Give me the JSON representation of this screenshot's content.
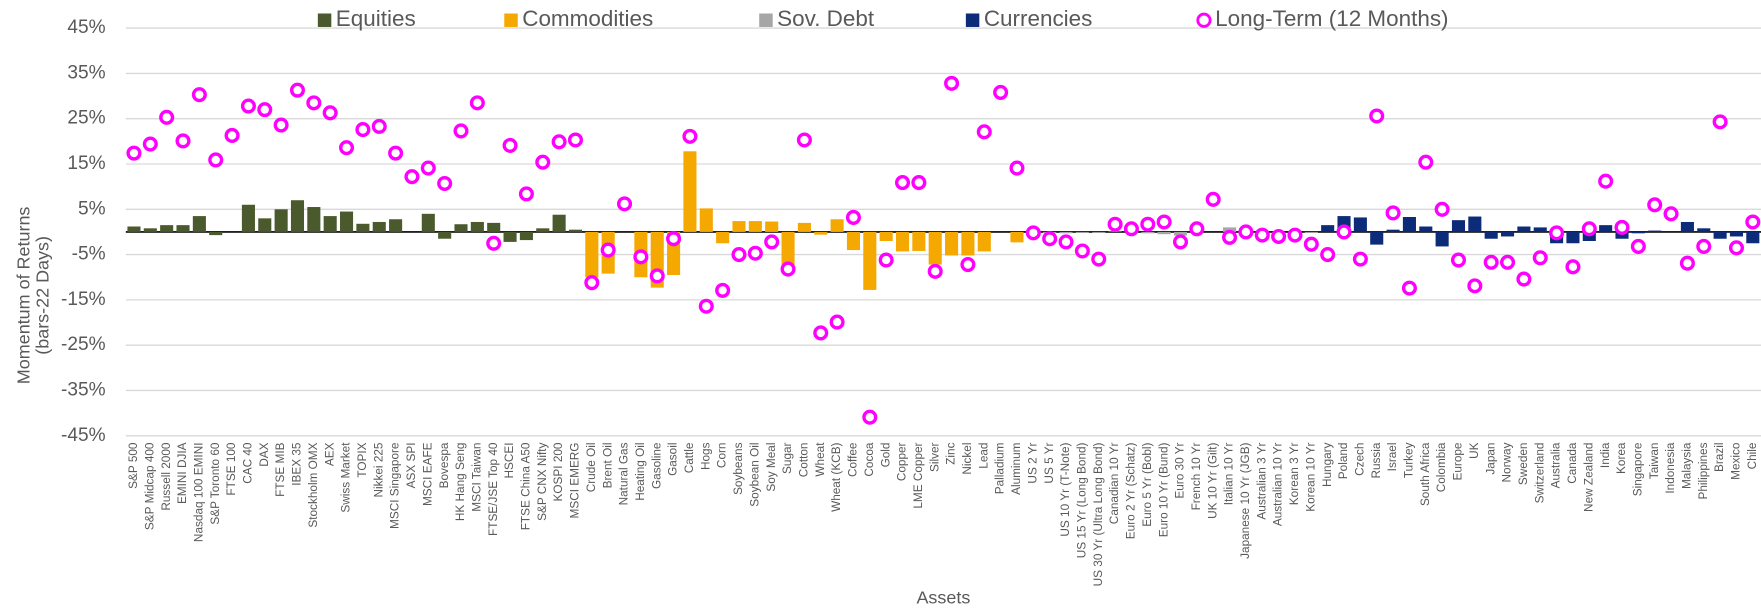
{
  "chart_data": {
    "type": "bar",
    "xlabel": "Assets",
    "ylabel": [
      "Momentum of Returns",
      "(bars-22 Days)"
    ],
    "ylim": [
      -45,
      45
    ],
    "yticks": [
      {
        "value": -45,
        "label": "-45%"
      },
      {
        "value": -35,
        "label": "-35%"
      },
      {
        "value": -25,
        "label": "-25%"
      },
      {
        "value": -15,
        "label": "-15%"
      },
      {
        "value": -5,
        "label": "-5%"
      },
      {
        "value": 5,
        "label": "5%"
      },
      {
        "value": 15,
        "label": "15%"
      },
      {
        "value": 25,
        "label": "25%"
      },
      {
        "value": 35,
        "label": "35%"
      },
      {
        "value": 45,
        "label": "45%"
      }
    ],
    "grid": true,
    "legend": "top",
    "categories": [
      "S&P 500",
      "S&P Midcap 400",
      "Russell 2000",
      "EMINI DJIA",
      "Nasdaq 100 EMINI",
      "S&P Toronto 60",
      "FTSE 100",
      "CAC 40",
      "DAX",
      "FTSE MIB",
      "IBEX 35",
      "Stockholm OMX",
      "AEX",
      "Swiss Market",
      "TOPIX",
      "Nikkei 225",
      "MSCI Singapore",
      "ASX SPI",
      "MSCI EAFE",
      "Bovespa",
      "HK Hang Seng",
      "MSCI Taiwan",
      "FTSE/JSE Top 40",
      "HSCEI",
      "FTSE China A50",
      "S&P CNX Nifty",
      "KOSPI 200",
      "MSCI EMERG",
      "Crude Oil",
      "Brent Oil",
      "Natural Gas",
      "Heating Oil",
      "Gasoline",
      "Gasoil",
      "Cattle",
      "Hogs",
      "Corn",
      "Soybeans",
      "Soybean Oil",
      "Soy Meal",
      "Sugar",
      "Cotton",
      "Wheat",
      "Wheat (KCB)",
      "Coffee",
      "Cocoa",
      "Gold",
      "Copper",
      "LME Copper",
      "Silver",
      "Zinc",
      "Nickel",
      "Lead",
      "Palladium",
      "Aluminum",
      "US 2 Yr",
      "US 5 Yr",
      "US 10 Yr (T-Note)",
      "US 15 Yr (Long Bond)",
      "US 30 Yr (Ultra Long Bond)",
      "Canadian 10 Yr",
      "Euro 2 Yr (Schatz)",
      "Euro 5 Yr (Bobl)",
      "Euro 10 Yr (Bund)",
      "Euro 30 Yr",
      "French 10 Yr",
      "UK 10 Yr (Gilt)",
      "Italian 10 Yr",
      "Japanese 10 Yr (JGB)",
      "Australian 3 Yr",
      "Australian 10 Yr",
      "Korean 3 Yr",
      "Korean 10 Yr",
      "Hungary",
      "Poland",
      "Czech",
      "Russia",
      "Israel",
      "Turkey",
      "South Africa",
      "Colombia",
      "Europe",
      "UK",
      "Japan",
      "Norway",
      "Sweden",
      "Switzerland",
      "Australia",
      "Canada",
      "New Zealand",
      "India",
      "Korea",
      "Singapore",
      "Taiwan",
      "Indonesia",
      "Malaysia",
      "Philippines",
      "Brazil",
      "Mexico",
      "Chile"
    ],
    "series": [
      {
        "name": "Equities",
        "type": "bar",
        "color": "#4b5a2c",
        "values": [
          1.2,
          0.8,
          1.5,
          1.5,
          3.5,
          -0.7,
          0,
          6,
          3,
          5,
          7,
          5.5,
          3.5,
          4.5,
          1.8,
          2.2,
          2.8,
          0,
          4,
          -1.5,
          1.7,
          2.2,
          2,
          -2.2,
          -1.8,
          0.8,
          3.8,
          0.5,
          null,
          null,
          null,
          null,
          null,
          null,
          null,
          null,
          null,
          null,
          null,
          null,
          null,
          null,
          null,
          null,
          null,
          null,
          null,
          null,
          null,
          null,
          null,
          null,
          null,
          null,
          null,
          null,
          null,
          null,
          null,
          null,
          null,
          null,
          null,
          null,
          null,
          null,
          null,
          null,
          null,
          null,
          null,
          null,
          null,
          null,
          null,
          null,
          null,
          null,
          null,
          null,
          null,
          null,
          null,
          null,
          null,
          null,
          null,
          null,
          null,
          null,
          null,
          null,
          null,
          null,
          null,
          null,
          null,
          null,
          null,
          null
        ]
      },
      {
        "name": "Commodities",
        "type": "bar",
        "color": "#f5a800",
        "values": [
          null,
          null,
          null,
          null,
          null,
          null,
          null,
          null,
          null,
          null,
          null,
          null,
          null,
          null,
          null,
          null,
          null,
          null,
          null,
          null,
          null,
          null,
          null,
          null,
          null,
          null,
          null,
          null,
          -10,
          -9.2,
          0,
          -10,
          -12.3,
          -9.5,
          17.8,
          5.2,
          -2.5,
          2.4,
          2.4,
          2.3,
          -7.3,
          2,
          -0.6,
          2.8,
          -4,
          -12.8,
          -2,
          -4.3,
          -4.2,
          -7.2,
          -5.2,
          -5.2,
          -4.3,
          0,
          -2.3,
          null,
          null,
          null,
          null,
          null,
          null,
          null,
          null,
          null,
          null,
          null,
          null,
          null,
          null,
          null,
          null,
          null,
          null,
          null,
          null,
          null,
          null,
          null,
          null,
          null,
          null,
          null,
          null,
          null,
          null,
          null,
          null,
          null,
          null,
          null,
          null,
          null,
          null,
          null,
          null,
          null,
          null,
          null,
          null,
          null
        ]
      },
      {
        "name": "Sov. Debt",
        "type": "bar",
        "color": "#a6a6a6",
        "values": [
          null,
          null,
          null,
          null,
          null,
          null,
          null,
          null,
          null,
          null,
          null,
          null,
          null,
          null,
          null,
          null,
          null,
          null,
          null,
          null,
          null,
          null,
          null,
          null,
          null,
          null,
          null,
          null,
          null,
          null,
          null,
          null,
          null,
          null,
          null,
          null,
          null,
          null,
          null,
          null,
          null,
          null,
          null,
          null,
          null,
          null,
          null,
          null,
          null,
          null,
          null,
          null,
          null,
          null,
          null,
          -0.2,
          -0.3,
          -0.3,
          -0.2,
          -0.2,
          0.1,
          0,
          -0.3,
          -0.5,
          -0.8,
          -0.2,
          0,
          1,
          0,
          -0.1,
          -0.2,
          -0.1,
          -0.2,
          null,
          null,
          null,
          null,
          null,
          null,
          null,
          null,
          null,
          null,
          null,
          null,
          null,
          null,
          null,
          null,
          null,
          null,
          null,
          null,
          null,
          null,
          null,
          null,
          null,
          null,
          null
        ]
      },
      {
        "name": "Currencies",
        "type": "bar",
        "color": "#0c2c7a",
        "values": [
          null,
          null,
          null,
          null,
          null,
          null,
          null,
          null,
          null,
          null,
          null,
          null,
          null,
          null,
          null,
          null,
          null,
          null,
          null,
          null,
          null,
          null,
          null,
          null,
          null,
          null,
          null,
          null,
          null,
          null,
          null,
          null,
          null,
          null,
          null,
          null,
          null,
          null,
          null,
          null,
          null,
          null,
          null,
          null,
          null,
          null,
          null,
          null,
          null,
          null,
          null,
          null,
          null,
          null,
          null,
          null,
          null,
          null,
          null,
          null,
          null,
          null,
          null,
          null,
          null,
          null,
          null,
          null,
          null,
          null,
          null,
          null,
          null,
          1.5,
          3.5,
          3.2,
          -2.8,
          0.5,
          3.3,
          1.2,
          -3.2,
          2.6,
          3.4,
          -1.5,
          -1,
          1.2,
          1,
          -2.5,
          -2.5,
          -2,
          1.5,
          -1.5,
          -0.3,
          0.3,
          0,
          2.2,
          0.8,
          -1.5,
          -1,
          -2.5
        ]
      },
      {
        "name": "Long-Term (12 Months)",
        "type": "scatter",
        "color": "#ff00ff",
        "values": [
          17.4,
          19.4,
          25.3,
          20.1,
          30.3,
          15.9,
          21.3,
          27.8,
          27,
          23.6,
          31.3,
          28.5,
          26.3,
          18.6,
          22.6,
          23.3,
          17.4,
          12.2,
          14.1,
          10.7,
          22.3,
          28.5,
          -2.5,
          19.1,
          8.4,
          15.4,
          19.9,
          20.3,
          -11.2,
          -4,
          6.2,
          -5.5,
          -9.7,
          -1.5,
          21.1,
          -16.4,
          -12.9,
          -5,
          -4.7,
          -2.2,
          -8.2,
          20.3,
          -22.3,
          -19.9,
          3.2,
          -40.9,
          -6.2,
          10.9,
          10.9,
          -8.7,
          32.8,
          -7.2,
          22.1,
          30.8,
          14.1,
          -0.2,
          -1.5,
          -2.2,
          -4.2,
          -6,
          1.7,
          0.7,
          1.7,
          2.2,
          -2.2,
          0.7,
          7.2,
          -1.2,
          0,
          -0.7,
          -1,
          -0.7,
          -2.7,
          -5,
          0,
          -6,
          25.6,
          4.2,
          -12.4,
          15.4,
          5,
          -6.2,
          -11.9,
          -6.7,
          -6.7,
          -10.4,
          -5.7,
          -0.2,
          -7.7,
          0.7,
          11.2,
          1,
          -3.2,
          6,
          4,
          -6.9,
          -3.2,
          24.3,
          -3.5,
          2.2
        ]
      }
    ]
  }
}
